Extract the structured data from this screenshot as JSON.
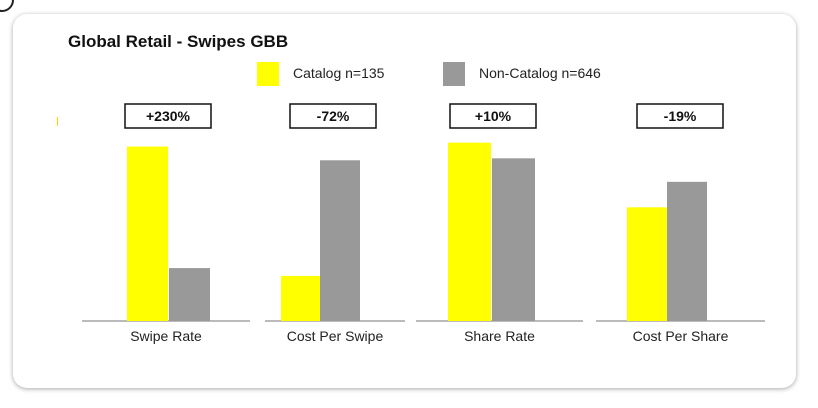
{
  "chart_data": {
    "type": "bar",
    "title": "Global Retail - Swipes GBB",
    "series": [
      {
        "name": "Catalog n=135",
        "color": "#ffff00"
      },
      {
        "name": "Non-Catalog n=646",
        "color": "#999999"
      }
    ],
    "panels": [
      {
        "category": "Swipe Rate",
        "change": "+230%",
        "values": [
          89,
          27
        ],
        "ylim": [
          0,
          100
        ]
      },
      {
        "category": "Cost Per Swipe",
        "change": "-72%",
        "values": [
          23,
          82
        ],
        "ylim": [
          0,
          100
        ]
      },
      {
        "category": "Share Rate",
        "change": "+10%",
        "values": [
          91,
          83
        ],
        "ylim": [
          0,
          100
        ]
      },
      {
        "category": "Cost Per Share",
        "change": "-19%",
        "values": [
          58,
          71
        ],
        "ylim": [
          0,
          100
        ]
      }
    ],
    "grid": false,
    "legend": "top-center"
  }
}
